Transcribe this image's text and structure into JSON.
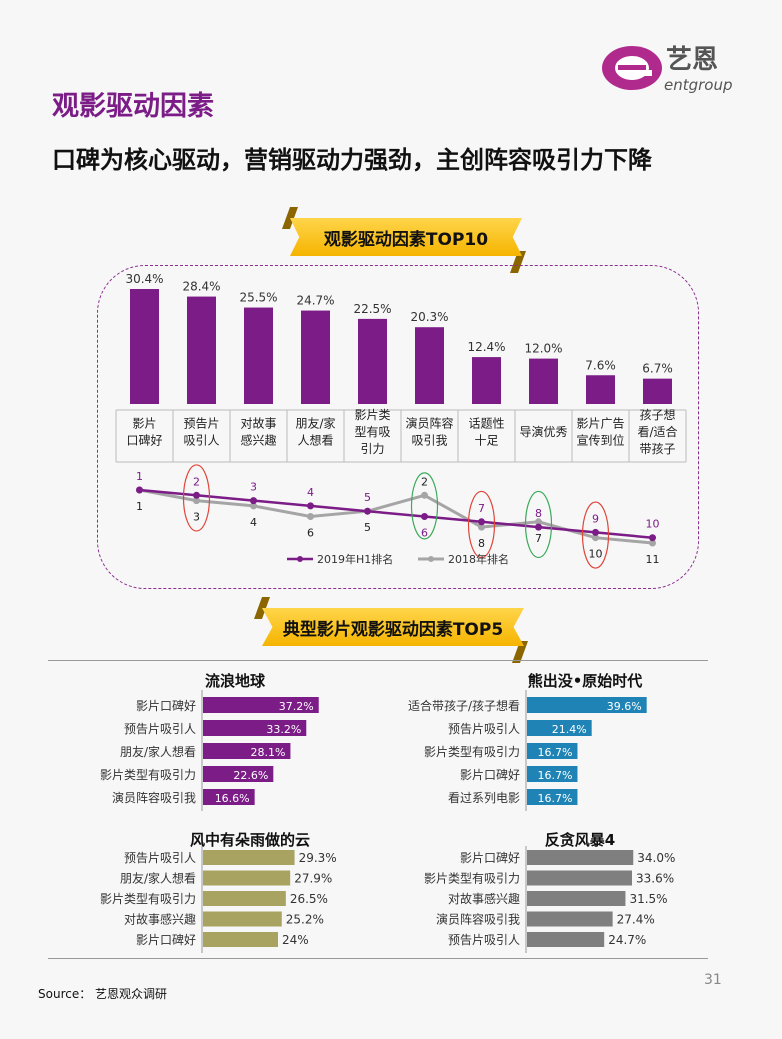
{
  "logo": {
    "brand_cn": "艺恩",
    "brand_en": "entgroup"
  },
  "page": {
    "title": "观影驱动因素",
    "subtitle": "口碑为核心驱动，营销驱动力强劲，主创阵容吸引力下降",
    "source": "Source： 艺恩观众调研",
    "page_number": "31"
  },
  "colors": {
    "purple": "#7b1c87",
    "gray": "#a5a5a5",
    "teal": "#1f84b5",
    "olive": "#a8a360",
    "darkgray": "#7f7f7f",
    "red_circle": "#e0453a",
    "green_circle": "#3aaa5b"
  },
  "chart_data": [
    {
      "type": "bar",
      "title": "观影驱动因素TOP10",
      "categories": [
        "影片\n口碑好",
        "预告片\n吸引人",
        "对故事\n感兴趣",
        "朋友/家\n人想看",
        "影片类\n型有吸\n引力",
        "演员阵容\n吸引我",
        "话题性\n十足",
        "导演优秀",
        "影片广告\n宣传到位",
        "孩子想\n看/适合\n带孩子"
      ],
      "values": [
        30.4,
        28.4,
        25.5,
        24.7,
        22.5,
        20.3,
        12.4,
        12.0,
        7.6,
        6.7
      ],
      "value_labels": [
        "30.4%",
        "28.4%",
        "25.5%",
        "24.7%",
        "22.5%",
        "20.3%",
        "12.4%",
        "12.0%",
        "7.6%",
        "6.7%"
      ],
      "ylim": [
        0,
        32
      ]
    },
    {
      "type": "line",
      "series": [
        {
          "name": "2019年H1排名",
          "values": [
            1,
            2,
            3,
            4,
            5,
            6,
            7,
            8,
            9,
            10
          ]
        },
        {
          "name": "2018年排名",
          "values": [
            1,
            3,
            4,
            6,
            5,
            2,
            8,
            7,
            10,
            11
          ]
        }
      ],
      "highlights": [
        {
          "index": 1,
          "color": "red"
        },
        {
          "index": 5,
          "color": "green"
        },
        {
          "index": 6,
          "color": "red"
        },
        {
          "index": 7,
          "color": "green"
        },
        {
          "index": 8,
          "color": "red"
        }
      ],
      "ylim": [
        0,
        12
      ],
      "y_inverted": true
    },
    {
      "type": "bar",
      "orientation": "horizontal",
      "title": "典型影片观影驱动因素TOP5"
    },
    {
      "type": "bar",
      "orientation": "horizontal",
      "title": "流浪地球",
      "color": "#7b1c87",
      "label_inside": true,
      "categories": [
        "影片口碑好",
        "预告片吸引人",
        "朋友/家人想看",
        "影片类型有吸引力",
        "演员阵容吸引我"
      ],
      "values": [
        37.2,
        33.2,
        28.1,
        22.6,
        16.6
      ],
      "value_labels": [
        "37.2%",
        "33.2%",
        "28.1%",
        "22.6%",
        "16.6%"
      ],
      "xlim": [
        0,
        45
      ]
    },
    {
      "type": "bar",
      "orientation": "horizontal",
      "title": "熊出没•原始时代",
      "color": "#1f84b5",
      "label_inside": true,
      "categories": [
        "适合带孩子/孩子想看",
        "预告片吸引人",
        "影片类型有吸引力",
        "影片口碑好",
        "看过系列电影"
      ],
      "values": [
        39.6,
        21.4,
        16.7,
        16.7,
        16.7
      ],
      "value_labels": [
        "39.6%",
        "21.4%",
        "16.7%",
        "16.7%",
        "16.7%"
      ],
      "xlim": [
        0,
        45
      ]
    },
    {
      "type": "bar",
      "orientation": "horizontal",
      "title": "风中有朵雨做的云",
      "color": "#a8a360",
      "label_inside": false,
      "categories": [
        "预告片吸引人",
        "朋友/家人想看",
        "影片类型有吸引力",
        "对故事感兴趣",
        "影片口碑好"
      ],
      "values": [
        29.3,
        27.9,
        26.5,
        25.2,
        24.0
      ],
      "value_labels": [
        "29.3%",
        "27.9%",
        "26.5%",
        "25.2%",
        "24%"
      ],
      "xlim": [
        0,
        40
      ]
    },
    {
      "type": "bar",
      "orientation": "horizontal",
      "title": "反贪风暴4",
      "color": "#7f7f7f",
      "label_inside": false,
      "categories": [
        "影片口碑好",
        "影片类型有吸引力",
        "对故事感兴趣",
        "演员阵容吸引我",
        "预告片吸引人"
      ],
      "values": [
        34.0,
        33.6,
        31.5,
        27.4,
        24.7
      ],
      "value_labels": [
        "34.0%",
        "33.6%",
        "31.5%",
        "27.4%",
        "24.7%"
      ],
      "xlim": [
        0,
        40
      ]
    }
  ]
}
